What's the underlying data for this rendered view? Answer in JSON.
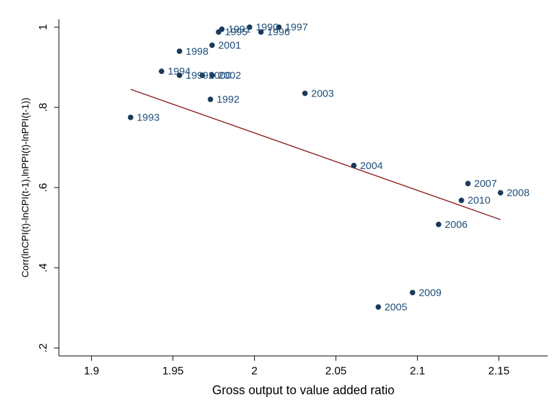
{
  "chart_data": {
    "type": "scatter",
    "title": "",
    "xlabel": "Gross output to value added ratio",
    "ylabel": "Corr(lnCPI(t)-lnCPI(t-1),lnPPI(t)-lnPPI(t-1))",
    "xlim": [
      1.88,
      2.18
    ],
    "ylim": [
      0.18,
      1.02
    ],
    "xticks": [
      1.9,
      1.95,
      2,
      2.05,
      2.1,
      2.15
    ],
    "xtick_labels": [
      "1.9",
      "1.95",
      "2",
      "2.05",
      "2.1",
      "2.15"
    ],
    "yticks": [
      0.2,
      0.4,
      0.6,
      0.8,
      1
    ],
    "ytick_labels": [
      ".2",
      ".4",
      ".6",
      ".8",
      "1"
    ],
    "grid": false,
    "legend": "none",
    "marker_color": "#1a3a5c",
    "label_color": "#1f4e79",
    "fit_line_color": "#8b1a1a",
    "series": [
      {
        "points": [
          {
            "label": "1993",
            "x": 1.924,
            "y": 0.775
          },
          {
            "label": "1994",
            "x": 1.943,
            "y": 0.89
          },
          {
            "label": "1998",
            "x": 1.954,
            "y": 0.94
          },
          {
            "label": "1999",
            "x": 1.954,
            "y": 0.88
          },
          {
            "label": "2000",
            "x": 1.968,
            "y": 0.88
          },
          {
            "label": "2002",
            "x": 1.974,
            "y": 0.88
          },
          {
            "label": "2001",
            "x": 1.974,
            "y": 0.955
          },
          {
            "label": "1992",
            "x": 1.973,
            "y": 0.82
          },
          {
            "label": "1995",
            "x": 1.978,
            "y": 0.988
          },
          {
            "label": "1991",
            "x": 1.98,
            "y": 0.995
          },
          {
            "label": "1990",
            "x": 1.997,
            "y": 1.0
          },
          {
            "label": "1996",
            "x": 2.004,
            "y": 0.988
          },
          {
            "label": "1997",
            "x": 2.015,
            "y": 1.0
          },
          {
            "label": "2003",
            "x": 2.031,
            "y": 0.835
          },
          {
            "label": "2004",
            "x": 2.061,
            "y": 0.655
          },
          {
            "label": "2005",
            "x": 2.076,
            "y": 0.302
          },
          {
            "label": "2009",
            "x": 2.097,
            "y": 0.338
          },
          {
            "label": "2006",
            "x": 2.113,
            "y": 0.508
          },
          {
            "label": "2010",
            "x": 2.127,
            "y": 0.568
          },
          {
            "label": "2007",
            "x": 2.131,
            "y": 0.61
          },
          {
            "label": "2008",
            "x": 2.151,
            "y": 0.587
          }
        ]
      }
    ],
    "fit_line": {
      "x": [
        1.924,
        2.151
      ],
      "y": [
        0.845,
        0.52
      ]
    }
  }
}
